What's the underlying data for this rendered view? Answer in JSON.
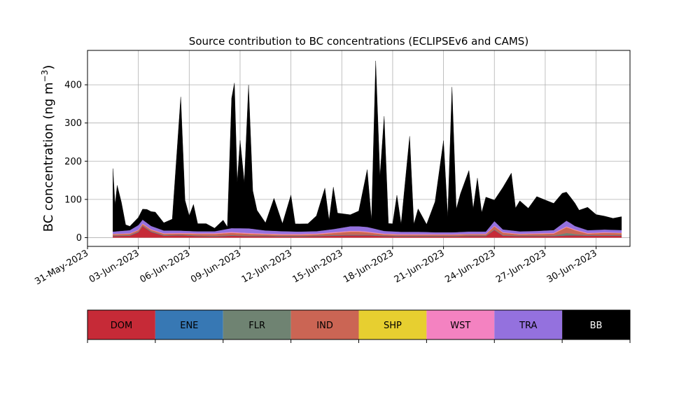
{
  "chart_data": {
    "type": "area",
    "stacked": true,
    "title": "Source contribution to BC concentrations (ECLIPSEv6 and CAMS)",
    "ylabel_main": "BC concentration (ng m",
    "ylabel_sup": "−3",
    "ylabel_close": ")",
    "xlabel": "",
    "xlim": [
      "2023-05-31",
      "2023-07-02"
    ],
    "ylim": [
      -23,
      490
    ],
    "grid": true,
    "legend_position": "bottom",
    "x_ticks": [
      "2023-05-31",
      "2023-06-03",
      "2023-06-06",
      "2023-06-09",
      "2023-06-12",
      "2023-06-15",
      "2023-06-18",
      "2023-06-21",
      "2023-06-24",
      "2023-06-27",
      "2023-06-30"
    ],
    "x_tick_labels": [
      "31-May-2023",
      "03-Jun-2023",
      "06-Jun-2023",
      "09-Jun-2023",
      "12-Jun-2023",
      "15-Jun-2023",
      "18-Jun-2023",
      "21-Jun-2023",
      "24-Jun-2023",
      "27-Jun-2023",
      "30-Jun-2023"
    ],
    "y_ticks": [
      0,
      100,
      200,
      300,
      400
    ],
    "y_tick_labels": [
      "0",
      "100",
      "200",
      "300",
      "400"
    ],
    "series": [
      {
        "name": "DOM",
        "color": "#c62a37",
        "points": [
          [
            "2023-06-01T12:00",
            4
          ],
          [
            "2023-06-02T12:00",
            5
          ],
          [
            "2023-06-03T00:00",
            14
          ],
          [
            "2023-06-03T06:00",
            30
          ],
          [
            "2023-06-03T18:00",
            15
          ],
          [
            "2023-06-04T12:00",
            5
          ],
          [
            "2023-06-05T12:00",
            6
          ],
          [
            "2023-06-06T12:00",
            4
          ],
          [
            "2023-06-07T12:00",
            3
          ],
          [
            "2023-06-08T12:00",
            5
          ],
          [
            "2023-06-09T12:00",
            4
          ],
          [
            "2023-06-10T12:00",
            4
          ],
          [
            "2023-06-11T12:00",
            3
          ],
          [
            "2023-06-12T12:00",
            3
          ],
          [
            "2023-06-13T12:00",
            4
          ],
          [
            "2023-06-14T12:00",
            5
          ],
          [
            "2023-06-15T12:00",
            6
          ],
          [
            "2023-06-16T12:00",
            6
          ],
          [
            "2023-06-17T12:00",
            4
          ],
          [
            "2023-06-18T12:00",
            3
          ],
          [
            "2023-06-19T12:00",
            3
          ],
          [
            "2023-06-20T12:00",
            3
          ],
          [
            "2023-06-21T12:00",
            3
          ],
          [
            "2023-06-22T12:00",
            4
          ],
          [
            "2023-06-23T12:00",
            4
          ],
          [
            "2023-06-24T00:00",
            20
          ],
          [
            "2023-06-24T12:00",
            5
          ],
          [
            "2023-06-25T12:00",
            4
          ],
          [
            "2023-06-26T12:00",
            4
          ],
          [
            "2023-06-27T12:00",
            4
          ],
          [
            "2023-06-28T12:00",
            6
          ],
          [
            "2023-06-29T12:00",
            5
          ],
          [
            "2023-06-30T12:00",
            5
          ],
          [
            "2023-07-01T00:00",
            5
          ],
          [
            "2023-07-01T12:00",
            5
          ]
        ]
      },
      {
        "name": "ENE",
        "color": "#3778b4",
        "points": [
          [
            "2023-06-01T12:00",
            0.5
          ],
          [
            "2023-06-05T12:00",
            0.5
          ],
          [
            "2023-06-10T12:00",
            0.5
          ],
          [
            "2023-06-15T12:00",
            0.5
          ],
          [
            "2023-06-20T12:00",
            0.5
          ],
          [
            "2023-06-25T12:00",
            0.5
          ],
          [
            "2023-07-01T12:00",
            0.5
          ]
        ]
      },
      {
        "name": "FLR",
        "color": "#6f8372",
        "points": [
          [
            "2023-06-01T12:00",
            1
          ],
          [
            "2023-06-05T12:00",
            1
          ],
          [
            "2023-06-10T12:00",
            1
          ],
          [
            "2023-06-15T12:00",
            1
          ],
          [
            "2023-06-20T12:00",
            1
          ],
          [
            "2023-06-25T12:00",
            1
          ],
          [
            "2023-06-27T12:00",
            1
          ],
          [
            "2023-06-28T06:00",
            6
          ],
          [
            "2023-06-28T18:00",
            3
          ],
          [
            "2023-06-29T12:00",
            1
          ],
          [
            "2023-07-01T12:00",
            1
          ]
        ]
      },
      {
        "name": "IND",
        "color": "#cb6554",
        "points": [
          [
            "2023-06-01T12:00",
            3
          ],
          [
            "2023-06-03T06:00",
            4
          ],
          [
            "2023-06-05T12:00",
            3
          ],
          [
            "2023-06-08T12:00",
            6
          ],
          [
            "2023-06-10T12:00",
            3
          ],
          [
            "2023-06-13T12:00",
            3
          ],
          [
            "2023-06-15T12:00",
            8
          ],
          [
            "2023-06-16T00:00",
            8
          ],
          [
            "2023-06-17T12:00",
            3
          ],
          [
            "2023-06-20T12:00",
            3
          ],
          [
            "2023-06-23T12:00",
            3
          ],
          [
            "2023-06-24T00:00",
            8
          ],
          [
            "2023-06-25T12:00",
            3
          ],
          [
            "2023-06-27T12:00",
            5
          ],
          [
            "2023-06-28T06:00",
            15
          ],
          [
            "2023-06-28T18:00",
            10
          ],
          [
            "2023-06-29T12:00",
            4
          ],
          [
            "2023-06-30T12:00",
            6
          ],
          [
            "2023-07-01T12:00",
            5
          ]
        ]
      },
      {
        "name": "SHP",
        "color": "#e7cf30",
        "points": [
          [
            "2023-06-01T12:00",
            0.3
          ],
          [
            "2023-06-10T12:00",
            0.3
          ],
          [
            "2023-06-20T12:00",
            0.3
          ],
          [
            "2023-07-01T12:00",
            0.3
          ]
        ]
      },
      {
        "name": "WST",
        "color": "#f482c1",
        "points": [
          [
            "2023-06-01T12:00",
            1
          ],
          [
            "2023-06-08T12:00",
            2
          ],
          [
            "2023-06-15T12:00",
            2
          ],
          [
            "2023-06-22T12:00",
            1
          ],
          [
            "2023-06-28T12:00",
            2
          ],
          [
            "2023-07-01T12:00",
            1
          ]
        ]
      },
      {
        "name": "TRA",
        "color": "#9471de",
        "points": [
          [
            "2023-06-01T12:00",
            6
          ],
          [
            "2023-06-02T12:00",
            8
          ],
          [
            "2023-06-03T00:00",
            12
          ],
          [
            "2023-06-03T06:00",
            10
          ],
          [
            "2023-06-04T12:00",
            7
          ],
          [
            "2023-06-05T12:00",
            6
          ],
          [
            "2023-06-06T12:00",
            5
          ],
          [
            "2023-06-07T12:00",
            5
          ],
          [
            "2023-06-08T12:00",
            10
          ],
          [
            "2023-06-09T12:00",
            12
          ],
          [
            "2023-06-10T12:00",
            8
          ],
          [
            "2023-06-11T12:00",
            7
          ],
          [
            "2023-06-12T12:00",
            6
          ],
          [
            "2023-06-13T12:00",
            6
          ],
          [
            "2023-06-14T12:00",
            8
          ],
          [
            "2023-06-15T12:00",
            12
          ],
          [
            "2023-06-16T12:00",
            12
          ],
          [
            "2023-06-17T12:00",
            7
          ],
          [
            "2023-06-18T12:00",
            6
          ],
          [
            "2023-06-19T12:00",
            6
          ],
          [
            "2023-06-20T12:00",
            5
          ],
          [
            "2023-06-21T12:00",
            5
          ],
          [
            "2023-06-22T12:00",
            6
          ],
          [
            "2023-06-23T12:00",
            6
          ],
          [
            "2023-06-24T00:00",
            12
          ],
          [
            "2023-06-24T12:00",
            7
          ],
          [
            "2023-06-25T12:00",
            6
          ],
          [
            "2023-06-26T12:00",
            6
          ],
          [
            "2023-06-27T12:00",
            7
          ],
          [
            "2023-06-28T06:00",
            15
          ],
          [
            "2023-06-28T18:00",
            9
          ],
          [
            "2023-06-29T12:00",
            7
          ],
          [
            "2023-06-30T12:00",
            7
          ],
          [
            "2023-07-01T12:00",
            7
          ]
        ]
      },
      {
        "name": "BB",
        "color": "#000000",
        "points": [
          [
            "2023-06-01T12:00",
            165
          ],
          [
            "2023-06-01T15:00",
            70
          ],
          [
            "2023-06-01T18:00",
            120
          ],
          [
            "2023-06-02T00:00",
            75
          ],
          [
            "2023-06-02T06:00",
            15
          ],
          [
            "2023-06-02T12:00",
            10
          ],
          [
            "2023-06-03T00:00",
            20
          ],
          [
            "2023-06-03T12:00",
            35
          ],
          [
            "2023-06-04T00:00",
            40
          ],
          [
            "2023-06-04T12:00",
            20
          ],
          [
            "2023-06-05T00:00",
            30
          ],
          [
            "2023-06-05T12:00",
            350
          ],
          [
            "2023-06-05T18:00",
            80
          ],
          [
            "2023-06-06T00:00",
            40
          ],
          [
            "2023-06-06T06:00",
            70
          ],
          [
            "2023-06-06T12:00",
            20
          ],
          [
            "2023-06-07T00:00",
            20
          ],
          [
            "2023-06-07T12:00",
            8
          ],
          [
            "2023-06-08T00:00",
            25
          ],
          [
            "2023-06-08T06:00",
            5
          ],
          [
            "2023-06-08T12:00",
            340
          ],
          [
            "2023-06-08T16:00",
            380
          ],
          [
            "2023-06-08T20:00",
            120
          ],
          [
            "2023-06-09T00:00",
            230
          ],
          [
            "2023-06-09T06:00",
            120
          ],
          [
            "2023-06-09T12:00",
            375
          ],
          [
            "2023-06-09T18:00",
            100
          ],
          [
            "2023-06-10T00:00",
            50
          ],
          [
            "2023-06-10T12:00",
            20
          ],
          [
            "2023-06-11T00:00",
            85
          ],
          [
            "2023-06-11T12:00",
            20
          ],
          [
            "2023-06-12T00:00",
            95
          ],
          [
            "2023-06-12T06:00",
            20
          ],
          [
            "2023-06-13T00:00",
            20
          ],
          [
            "2023-06-13T12:00",
            40
          ],
          [
            "2023-06-14T00:00",
            110
          ],
          [
            "2023-06-14T06:00",
            25
          ],
          [
            "2023-06-14T12:00",
            110
          ],
          [
            "2023-06-14T18:00",
            40
          ],
          [
            "2023-06-15T12:00",
            30
          ],
          [
            "2023-06-16T00:00",
            40
          ],
          [
            "2023-06-16T12:00",
            150
          ],
          [
            "2023-06-16T18:00",
            20
          ],
          [
            "2023-06-17T00:00",
            440
          ],
          [
            "2023-06-17T06:00",
            140
          ],
          [
            "2023-06-17T12:00",
            300
          ],
          [
            "2023-06-17T18:00",
            20
          ],
          [
            "2023-06-18T00:00",
            20
          ],
          [
            "2023-06-18T06:00",
            95
          ],
          [
            "2023-06-18T12:00",
            20
          ],
          [
            "2023-06-19T00:00",
            250
          ],
          [
            "2023-06-19T06:00",
            20
          ],
          [
            "2023-06-19T12:00",
            60
          ],
          [
            "2023-06-20T00:00",
            20
          ],
          [
            "2023-06-20T12:00",
            80
          ],
          [
            "2023-06-21T00:00",
            240
          ],
          [
            "2023-06-21T06:00",
            40
          ],
          [
            "2023-06-21T12:00",
            380
          ],
          [
            "2023-06-21T18:00",
            60
          ],
          [
            "2023-06-22T00:00",
            100
          ],
          [
            "2023-06-22T12:00",
            160
          ],
          [
            "2023-06-22T18:00",
            60
          ],
          [
            "2023-06-23T00:00",
            140
          ],
          [
            "2023-06-23T06:00",
            50
          ],
          [
            "2023-06-23T12:00",
            90
          ],
          [
            "2023-06-24T00:00",
            55
          ],
          [
            "2023-06-24T12:00",
            110
          ],
          [
            "2023-06-25T00:00",
            150
          ],
          [
            "2023-06-25T06:00",
            60
          ],
          [
            "2023-06-25T12:00",
            80
          ],
          [
            "2023-06-26T00:00",
            60
          ],
          [
            "2023-06-26T12:00",
            90
          ],
          [
            "2023-06-27T00:00",
            80
          ],
          [
            "2023-06-27T12:00",
            70
          ],
          [
            "2023-06-28T00:00",
            80
          ],
          [
            "2023-06-28T06:00",
            75
          ],
          [
            "2023-06-28T18:00",
            60
          ],
          [
            "2023-06-29T00:00",
            45
          ],
          [
            "2023-06-29T12:00",
            60
          ],
          [
            "2023-06-30T00:00",
            40
          ],
          [
            "2023-06-30T12:00",
            35
          ],
          [
            "2023-07-01T00:00",
            30
          ],
          [
            "2023-07-01T12:00",
            35
          ]
        ]
      }
    ]
  }
}
